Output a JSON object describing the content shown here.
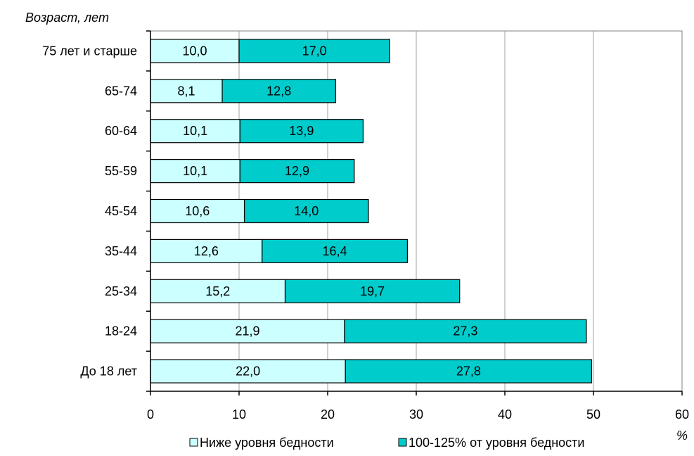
{
  "chart_data": {
    "type": "bar",
    "orientation": "horizontal",
    "stacked": true,
    "ylabel": "Возраст, лет",
    "xlabel": "%",
    "xlim": [
      0,
      60
    ],
    "xticks": [
      0,
      10,
      20,
      30,
      40,
      50,
      60
    ],
    "grid": true,
    "legend_position": "bottom",
    "categories": [
      "75 лет и старше",
      "65-74",
      "60-64",
      "55-59",
      "45-54",
      "35-44",
      "25-34",
      "18-24",
      "До 18 лет"
    ],
    "series": [
      {
        "name": "Ниже уровня бедности",
        "color": "#ccffff",
        "values": [
          10.0,
          8.1,
          10.1,
          10.1,
          10.6,
          12.6,
          15.2,
          21.9,
          22.0
        ],
        "labels": [
          "10,0",
          "8,1",
          "10,1",
          "10,1",
          "10,6",
          "12,6",
          "15,2",
          "21,9",
          "22,0"
        ]
      },
      {
        "name": "100-125% от уровня бедности",
        "color": "#00cccc",
        "values": [
          17.0,
          12.8,
          13.9,
          12.9,
          14.0,
          16.4,
          19.7,
          27.3,
          27.8
        ],
        "labels": [
          "17,0",
          "12,8",
          "13,9",
          "12,9",
          "14,0",
          "16,4",
          "19,7",
          "27,3",
          "27,8"
        ]
      }
    ]
  }
}
